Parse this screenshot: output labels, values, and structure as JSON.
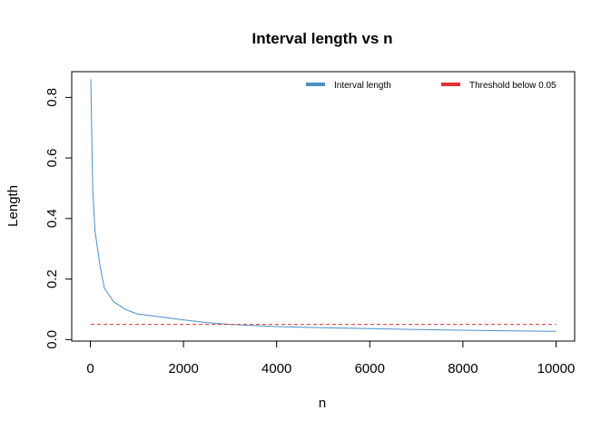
{
  "chart_data": {
    "type": "line",
    "title": "Interval length vs n",
    "xlabel": "n",
    "ylabel": "Length",
    "xlim": [
      -400,
      10400
    ],
    "ylim": [
      -0.005,
      0.885
    ],
    "xticks": [
      0,
      2000,
      4000,
      6000,
      8000,
      10000
    ],
    "xtick_labels": [
      "0",
      "2000",
      "4000",
      "6000",
      "8000",
      "10000"
    ],
    "yticks": [
      0.0,
      0.2,
      0.4,
      0.6,
      0.8
    ],
    "ytick_labels": [
      "0.0",
      "0.2",
      "0.4",
      "0.6",
      "0.8"
    ],
    "legend_position": "top-right",
    "series": [
      {
        "name": "Interval length",
        "color": "#4a90c8",
        "style": "solid",
        "x": [
          10,
          50,
          100,
          200,
          300,
          500,
          750,
          1000,
          1500,
          2000,
          2500,
          3000,
          4000,
          5000,
          6000,
          7000,
          8000,
          9000,
          10000
        ],
        "y": [
          0.86,
          0.5,
          0.36,
          0.25,
          0.17,
          0.125,
          0.1,
          0.085,
          0.075,
          0.065,
          0.056,
          0.05,
          0.043,
          0.039,
          0.036,
          0.033,
          0.031,
          0.029,
          0.027
        ]
      },
      {
        "name": "Threshold below 0.05",
        "color": "#e03030",
        "style": "dashed",
        "x": [
          10,
          10000
        ],
        "y": [
          0.05,
          0.05
        ]
      }
    ]
  }
}
